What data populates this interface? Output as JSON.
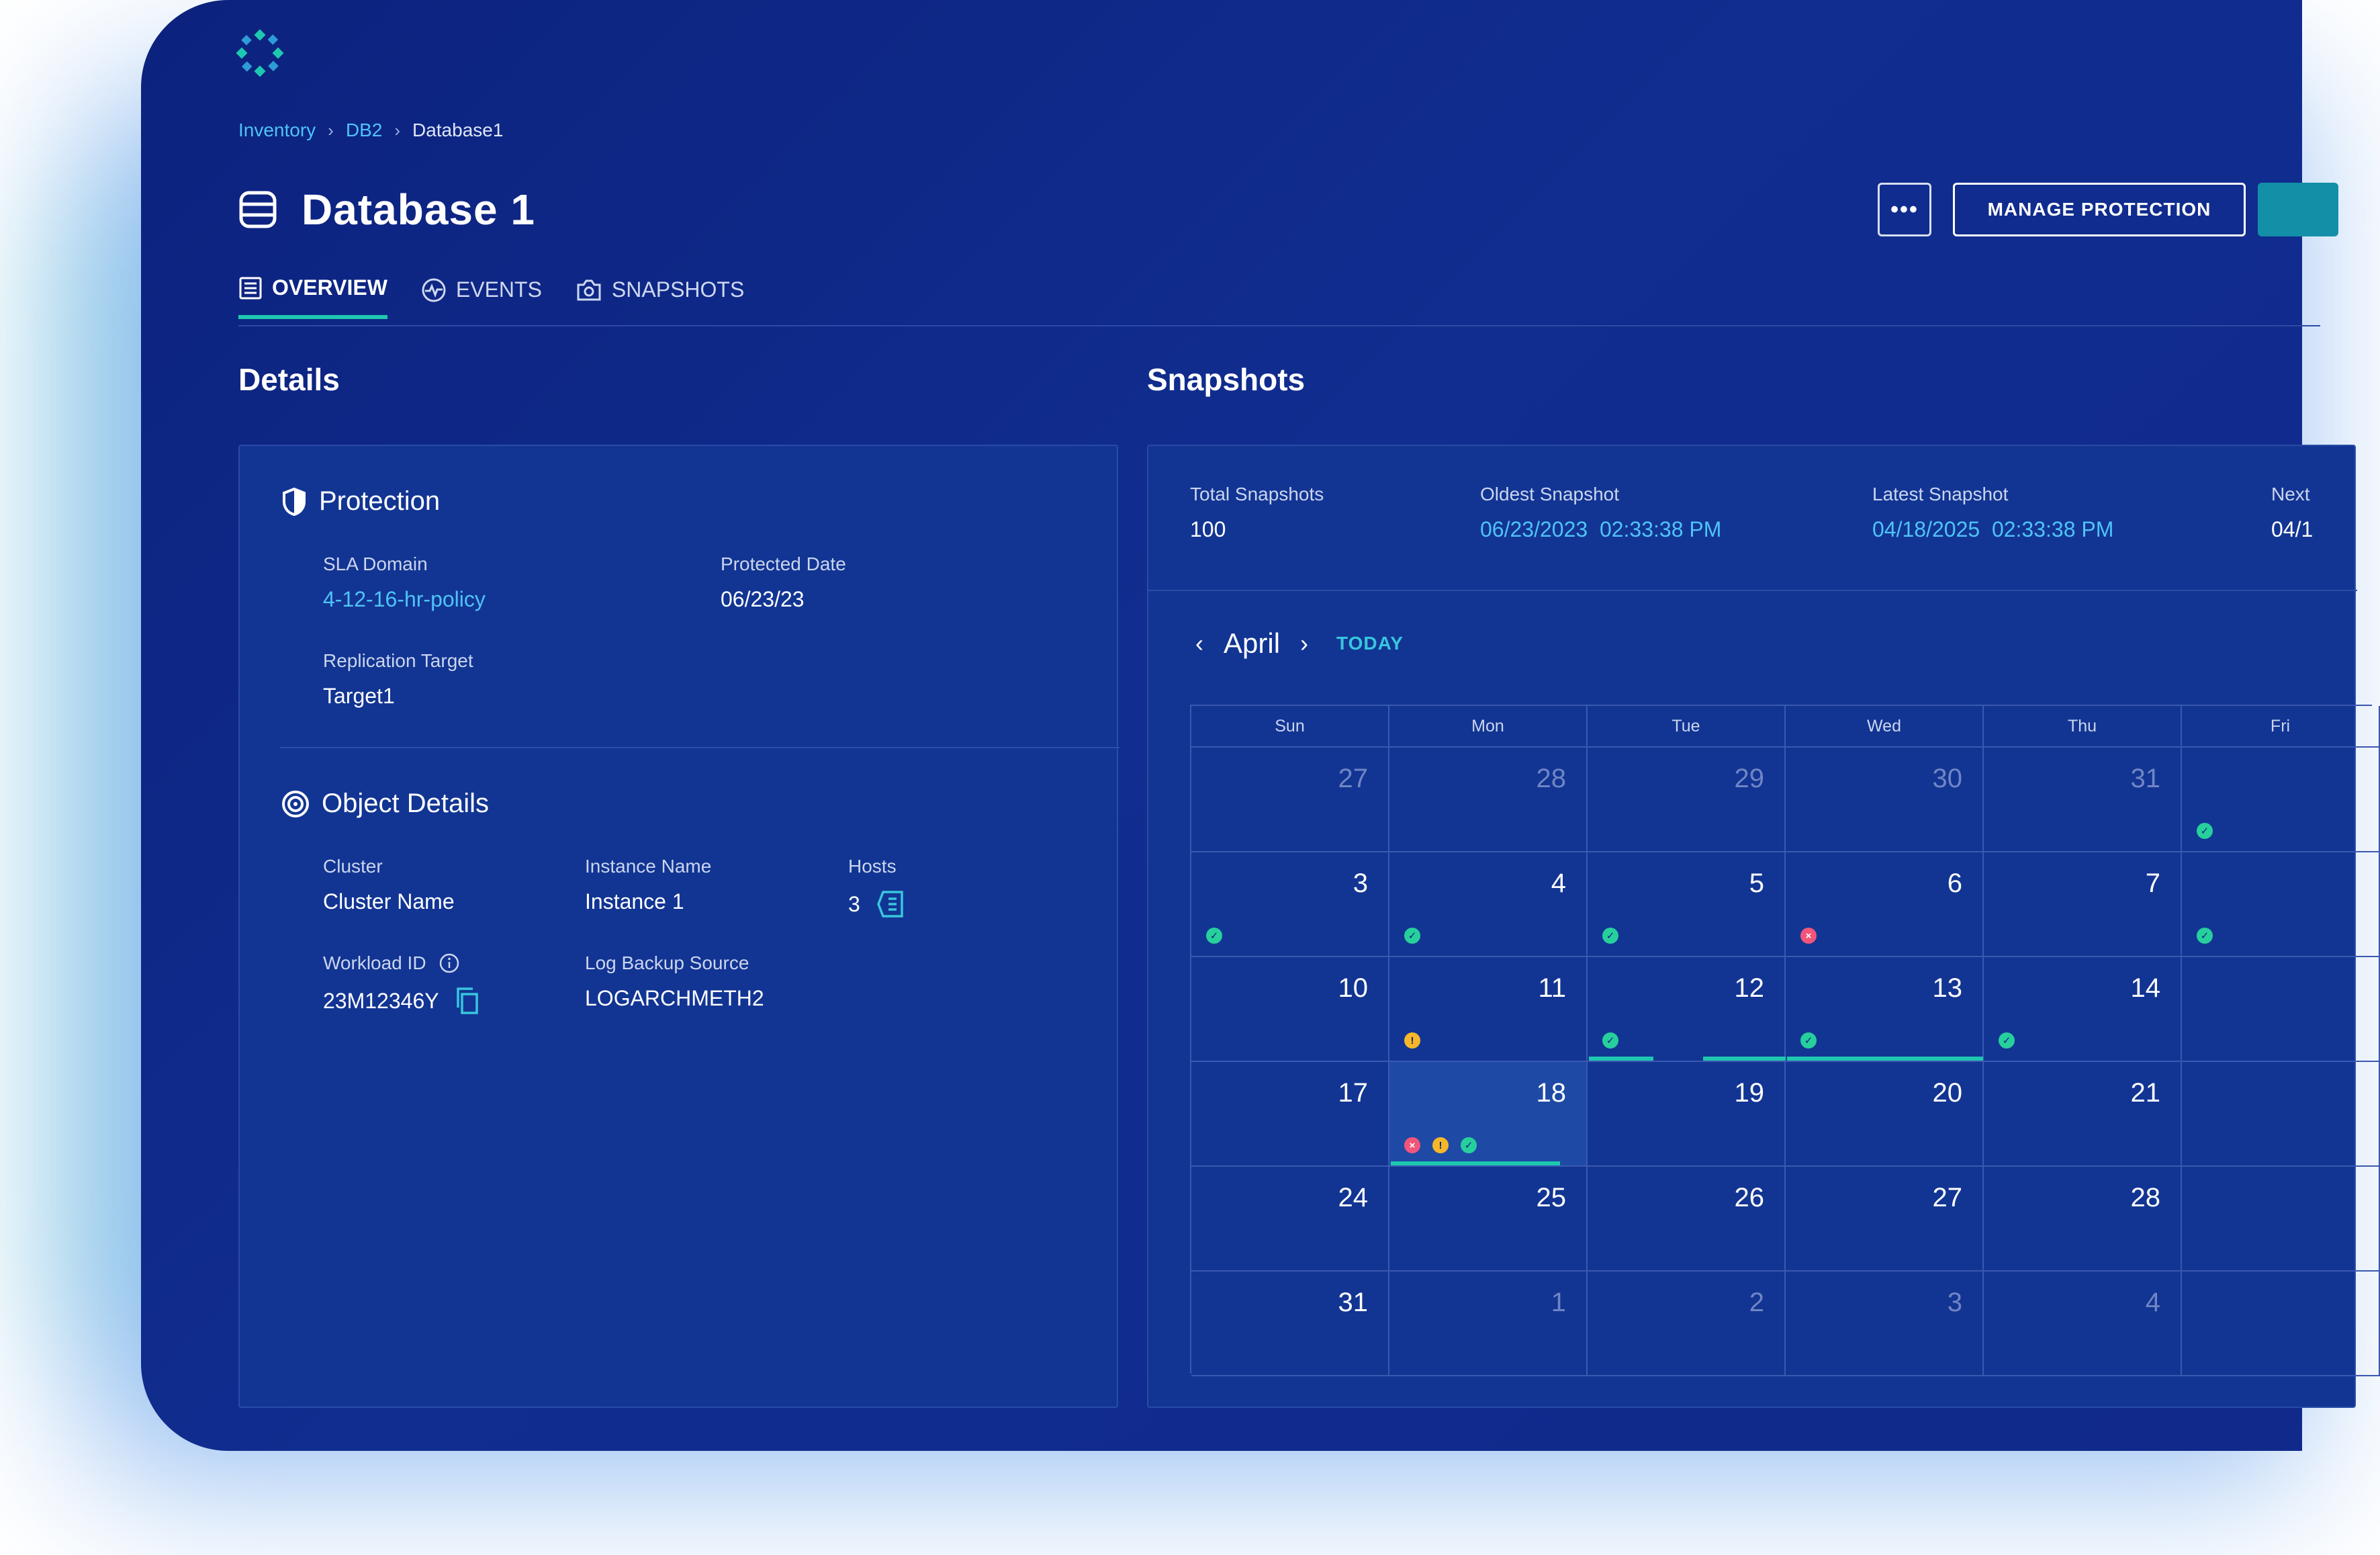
{
  "breadcrumb": {
    "items": [
      "Inventory",
      "DB2",
      "Database1"
    ]
  },
  "page": {
    "title": "Database 1"
  },
  "actions": {
    "more_label": "•••",
    "manage_label": "MANAGE PROTECTION"
  },
  "tabs": [
    {
      "label": "OVERVIEW",
      "icon": "list-icon",
      "active": true
    },
    {
      "label": "EVENTS",
      "icon": "activity-icon",
      "active": false
    },
    {
      "label": "SNAPSHOTS",
      "icon": "camera-icon",
      "active": false
    }
  ],
  "details": {
    "heading": "Details",
    "protection": {
      "title": "Protection",
      "sla_label": "SLA Domain",
      "sla_value": "4-12-16-hr-policy",
      "protected_label": "Protected Date",
      "protected_value": "06/23/23",
      "replication_label": "Replication Target",
      "replication_value": "Target1"
    },
    "object": {
      "title": "Object Details",
      "cluster_label": "Cluster",
      "cluster_value": "Cluster Name",
      "instance_label": "Instance Name",
      "instance_value": "Instance 1",
      "hosts_label": "Hosts",
      "hosts_value": "3",
      "workload_label": "Workload ID",
      "workload_value": "23M12346Y",
      "log_label": "Log Backup Source",
      "log_value": "LOGARCHMETH2"
    }
  },
  "snapshots": {
    "heading": "Snapshots",
    "total_label": "Total Snapshots",
    "total_value": "100",
    "oldest_label": "Oldest Snapshot",
    "oldest_value": "06/23/2023  02:33:38 PM",
    "latest_label": "Latest Snapshot",
    "latest_value": "04/18/2025  02:33:38 PM",
    "next_label": "Next",
    "next_value": "04/1"
  },
  "calendar": {
    "month": "April",
    "today_label": "TODAY",
    "weekdays": [
      "Sun",
      "Mon",
      "Tue",
      "Wed",
      "Thu",
      "Fri"
    ],
    "weeks": [
      [
        {
          "d": "27",
          "m": true
        },
        {
          "d": "28",
          "m": true
        },
        {
          "d": "29",
          "m": true
        },
        {
          "d": "30",
          "m": true
        },
        {
          "d": "31",
          "m": true
        },
        {
          "d": "",
          "dots": [
            "ok"
          ]
        }
      ],
      [
        {
          "d": "3",
          "dots": [
            "ok"
          ]
        },
        {
          "d": "4",
          "dots": [
            "ok"
          ]
        },
        {
          "d": "5",
          "dots": [
            "ok"
          ]
        },
        {
          "d": "6",
          "dots": [
            "err"
          ]
        },
        {
          "d": "7"
        },
        {
          "d": "",
          "dots": [
            "ok"
          ]
        }
      ],
      [
        {
          "d": "10"
        },
        {
          "d": "11",
          "dots": [
            "warn"
          ]
        },
        {
          "d": "12",
          "dots": [
            "ok"
          ]
        },
        {
          "d": "13",
          "dots": [
            "ok"
          ]
        },
        {
          "d": "14",
          "dots": [
            "ok"
          ]
        },
        {
          "d": ""
        }
      ],
      [
        {
          "d": "17"
        },
        {
          "d": "18",
          "dots": [
            "err",
            "warn",
            "ok"
          ],
          "sel": true
        },
        {
          "d": "19"
        },
        {
          "d": "20"
        },
        {
          "d": "21"
        },
        {
          "d": ""
        }
      ],
      [
        {
          "d": "24"
        },
        {
          "d": "25"
        },
        {
          "d": "26"
        },
        {
          "d": "27"
        },
        {
          "d": "28"
        },
        {
          "d": ""
        }
      ],
      [
        {
          "d": "31"
        },
        {
          "d": "1",
          "m": true
        },
        {
          "d": "2",
          "m": true
        },
        {
          "d": "3",
          "m": true
        },
        {
          "d": "4",
          "m": true
        },
        {
          "d": ""
        }
      ]
    ]
  },
  "colors": {
    "accent": "#1ec8b0",
    "link": "#4fc3f7",
    "bg": "#0c227e"
  }
}
